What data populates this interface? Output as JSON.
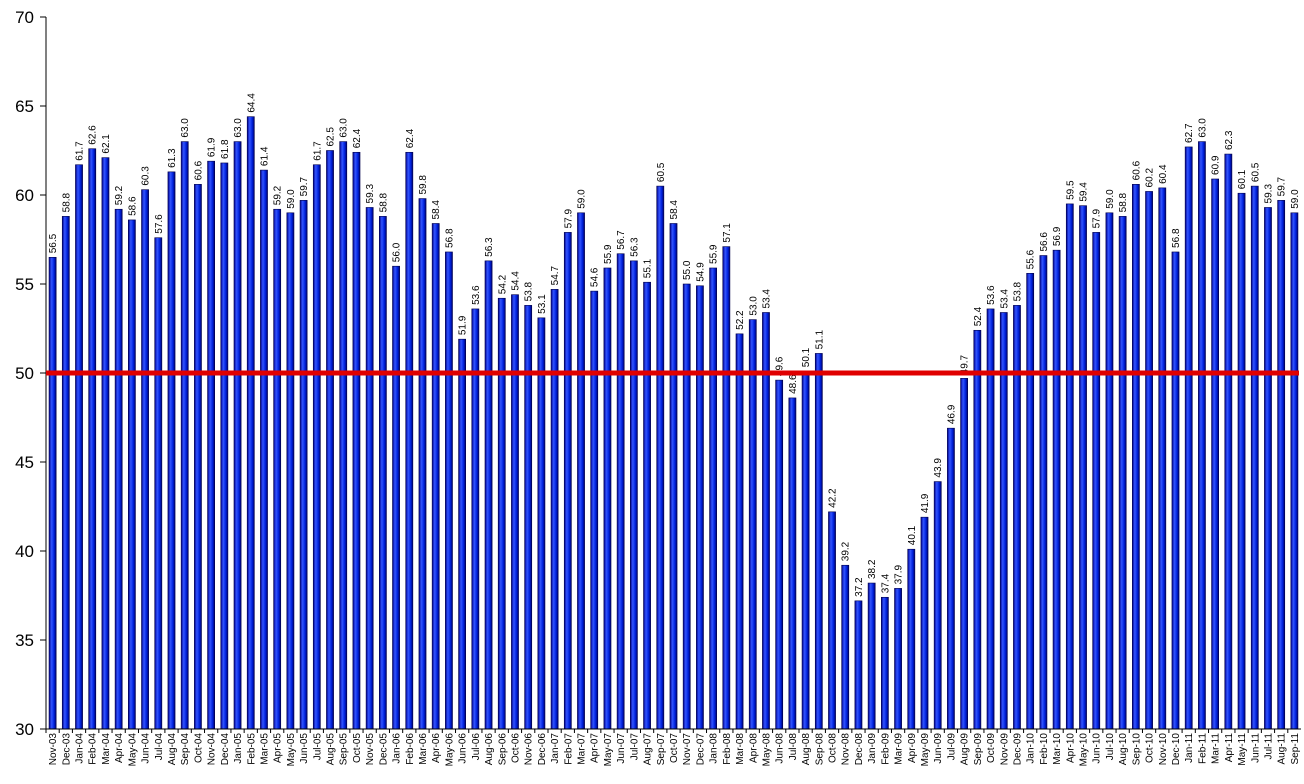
{
  "chart_data": {
    "type": "bar",
    "categories": [
      "Nov-03",
      "Dec-03",
      "Jan-04",
      "Feb-04",
      "Mar-04",
      "Apr-04",
      "May-04",
      "Jun-04",
      "Jul-04",
      "Aug-04",
      "Sep-04",
      "Oct-04",
      "Nov-04",
      "Dec-04",
      "Jan-05",
      "Feb-05",
      "Mar-05",
      "Apr-05",
      "May-05",
      "Jun-05",
      "Jul-05",
      "Aug-05",
      "Sep-05",
      "Oct-05",
      "Nov-05",
      "Dec-05",
      "Jan-06",
      "Feb-06",
      "Mar-06",
      "Apr-06",
      "May-06",
      "Jun-06",
      "Jul-06",
      "Aug-06",
      "Sep-06",
      "Oct-06",
      "Nov-06",
      "Dec-06",
      "Jan-07",
      "Feb-07",
      "Mar-07",
      "Apr-07",
      "May-07",
      "Jun-07",
      "Jul-07",
      "Aug-07",
      "Sep-07",
      "Oct-07",
      "Nov-07",
      "Dec-07",
      "Jan-08",
      "Feb-08",
      "Mar-08",
      "Apr-08",
      "May-08",
      "Jun-08",
      "Jul-08",
      "Aug-08",
      "Sep-08",
      "Oct-08",
      "Nov-08",
      "Dec-08",
      "Jan-09",
      "Feb-09",
      "Mar-09",
      "Apr-09",
      "May-09",
      "Jun-09",
      "Jul-09",
      "Aug-09",
      "Sep-09",
      "Oct-09",
      "Nov-09",
      "Dec-09",
      "Jan-10",
      "Feb-10",
      "Mar-10",
      "Apr-10",
      "May-10",
      "Jun-10",
      "Jul-10",
      "Aug-10",
      "Sep-10",
      "Oct-10",
      "Nov-10",
      "Dec-10",
      "Jan-11",
      "Feb-11",
      "Mar-11",
      "Apr-11",
      "May-11",
      "Jun-11",
      "Jul-11",
      "Aug-11",
      "Sep-11"
    ],
    "values": [
      56.5,
      58.8,
      61.7,
      62.6,
      62.1,
      59.2,
      58.6,
      60.3,
      57.6,
      61.3,
      63.0,
      60.6,
      61.9,
      61.8,
      63.0,
      64.4,
      61.4,
      59.2,
      59.0,
      59.7,
      61.7,
      62.5,
      63.0,
      62.4,
      59.3,
      58.8,
      56.0,
      62.4,
      59.8,
      58.4,
      56.8,
      51.9,
      53.6,
      56.3,
      54.2,
      54.4,
      53.8,
      53.1,
      54.7,
      57.9,
      59.0,
      54.6,
      55.9,
      56.7,
      56.3,
      55.1,
      60.5,
      58.4,
      55.0,
      54.9,
      55.9,
      57.1,
      52.2,
      53.0,
      53.4,
      49.6,
      48.6,
      50.1,
      51.1,
      42.2,
      39.2,
      37.2,
      38.2,
      37.4,
      37.9,
      40.1,
      41.9,
      43.9,
      46.9,
      49.7,
      52.4,
      53.6,
      53.4,
      53.8,
      55.6,
      56.6,
      56.9,
      59.5,
      59.4,
      57.9,
      59.0,
      58.8,
      60.6,
      60.2,
      60.4,
      56.8,
      62.7,
      63.0,
      60.9,
      62.3,
      60.1,
      60.5,
      59.3,
      59.7,
      59.0
    ],
    "value_labels": [
      "56.5",
      "58.8",
      "61.7",
      "62.6",
      "62.1",
      "59.2",
      "58.6",
      "60.3",
      "57.6",
      "61.3",
      "63.0",
      "60.6",
      "61.9",
      "61.8",
      "63.0",
      "64.4",
      "61.4",
      "59.2",
      "59.0",
      "59.7",
      "61.7",
      "62.5",
      "63.0",
      "62.4",
      "59.3",
      "58.8",
      "56.0",
      "62.4",
      "59.8",
      "58.4",
      "56.8",
      "51.9",
      "53.6",
      "56.3",
      "54.2",
      "54.4",
      "53.8",
      "53.1",
      "54.7",
      "57.9",
      "59.0",
      "54.6",
      "55.9",
      "56.7",
      "56.3",
      "55.1",
      "60.5",
      "58.4",
      "55.0",
      "54.9",
      "55.9",
      "57.1",
      "52.2",
      "53.0",
      "53.4",
      "49.6",
      "48.6",
      "50.1",
      "51.1",
      "42.2",
      "39.2",
      "37.2",
      "38.2",
      "37.4",
      "37.9",
      "40.1",
      "41.9",
      "43.9",
      "46.9",
      "49.7",
      "52.4",
      "53.6",
      "53.4",
      "53.8",
      "55.6",
      "56.6",
      "56.9",
      "59.5",
      "59.4",
      "57.9",
      "59.0",
      "58.8",
      "60.6",
      "60.2",
      "60.4",
      "56.8",
      "62.7",
      "63.0",
      "60.9",
      "62.3",
      "60.1",
      "60.5",
      "59.3",
      "59.7",
      "59.0"
    ],
    "color": "#0a2cf0",
    "ylim": [
      30,
      70
    ],
    "yticks": [
      30,
      35,
      40,
      45,
      50,
      55,
      60,
      65,
      70
    ],
    "reference_line": {
      "value": 50,
      "color": "#e00000"
    }
  }
}
